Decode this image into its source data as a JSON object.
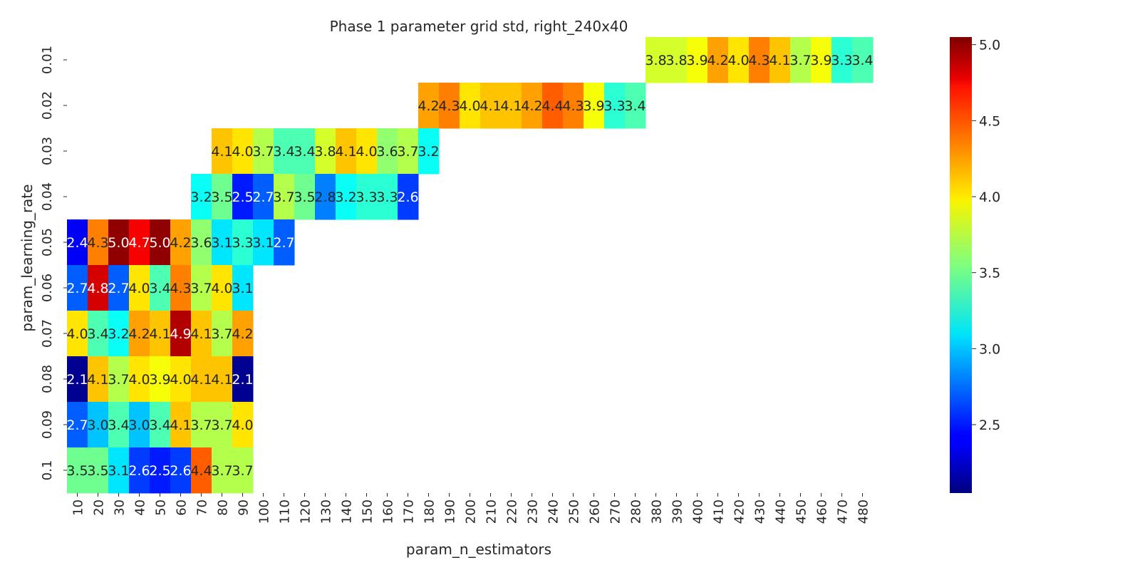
{
  "chart_data": {
    "type": "heatmap",
    "title": "Phase 1 parameter grid std, right_240x40",
    "xlabel": "param_n_estimators",
    "ylabel": "param_learning_rate",
    "x_categories": [
      "10",
      "20",
      "30",
      "40",
      "50",
      "60",
      "70",
      "80",
      "90",
      "100",
      "110",
      "120",
      "130",
      "140",
      "150",
      "160",
      "170",
      "180",
      "190",
      "200",
      "210",
      "220",
      "230",
      "240",
      "250",
      "260",
      "270",
      "280",
      "380",
      "390",
      "400",
      "410",
      "420",
      "430",
      "440",
      "450",
      "460",
      "470",
      "480"
    ],
    "y_categories": [
      "0.01",
      "0.02",
      "0.03",
      "0.04",
      "0.05",
      "0.06",
      "0.07",
      "0.08",
      "0.09",
      "0.1"
    ],
    "cells": [
      {
        "row": "0.01",
        "start_col": "380",
        "values": [
          3.8,
          3.8,
          3.9,
          4.2,
          4.0,
          4.3,
          4.1,
          3.7,
          3.9,
          3.3,
          3.4
        ]
      },
      {
        "row": "0.02",
        "start_col": "180",
        "values": [
          4.2,
          4.3,
          4.0,
          4.1,
          4.1,
          4.2,
          4.4,
          4.3,
          3.9,
          3.3,
          3.4
        ]
      },
      {
        "row": "0.03",
        "start_col": "80",
        "values": [
          4.1,
          4.0,
          3.7,
          3.4,
          3.4,
          3.8,
          4.1,
          4.0,
          3.6,
          3.7,
          3.2
        ]
      },
      {
        "row": "0.04",
        "start_col": "70",
        "values": [
          3.2,
          3.5,
          2.5,
          2.7,
          3.7,
          3.5,
          2.8,
          3.2,
          3.3,
          3.3,
          2.6
        ]
      },
      {
        "row": "0.05",
        "start_col": "10",
        "values": [
          2.4,
          4.3,
          5.0,
          4.7,
          5.0,
          4.2,
          3.6,
          3.1,
          3.3,
          3.1,
          2.7
        ]
      },
      {
        "row": "0.06",
        "start_col": "10",
        "values": [
          2.7,
          4.8,
          2.7,
          4.0,
          3.4,
          4.3,
          3.7,
          4.0,
          3.1
        ]
      },
      {
        "row": "0.07",
        "start_col": "10",
        "values": [
          4.0,
          3.4,
          3.2,
          4.2,
          4.1,
          4.9,
          4.1,
          3.7,
          4.2
        ]
      },
      {
        "row": "0.08",
        "start_col": "10",
        "values": [
          2.1,
          4.1,
          3.7,
          4.0,
          3.9,
          4.0,
          4.1,
          4.1,
          2.1
        ]
      },
      {
        "row": "0.09",
        "start_col": "10",
        "values": [
          2.7,
          3.0,
          3.4,
          3.0,
          3.4,
          4.1,
          3.7,
          3.7,
          4.0
        ]
      },
      {
        "row": "0.1",
        "start_col": "10",
        "values": [
          3.5,
          3.5,
          3.1,
          2.6,
          2.5,
          2.6,
          4.4,
          3.7,
          3.7
        ]
      }
    ],
    "colormap": "jet",
    "color_range": [
      2.05,
      5.05
    ],
    "colorbar_ticks": [
      "2.5",
      "3.0",
      "3.5",
      "4.0",
      "4.5",
      "5.0"
    ],
    "annotations": true,
    "grid": false,
    "legend": "colorbar-right"
  }
}
